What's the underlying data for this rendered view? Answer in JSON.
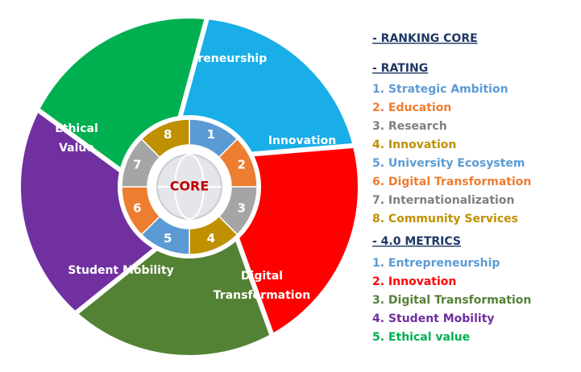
{
  "diagram": {
    "segments": [
      {
        "lines": [
          "Entrepreneurship"
        ]
      },
      {
        "lines": [
          "Innovation"
        ]
      },
      {
        "lines": [
          "Digital",
          "Transformation"
        ]
      },
      {
        "lines": [
          "Student Mobility"
        ]
      },
      {
        "lines": [
          "Ethical",
          "Value"
        ]
      }
    ],
    "core": {
      "label": "CORE",
      "numbers": [
        "1",
        "2",
        "3",
        "4",
        "5",
        "6",
        "7",
        "8"
      ]
    }
  },
  "legend": {
    "ranking_core": "- RANKING CORE",
    "rating": {
      "heading": "- RATING",
      "items": [
        "1. Strategic Ambition",
        "2. Education",
        "3. Research",
        "4. Innovation",
        "5. University Ecosystem",
        "6. Digital Transformation",
        "7. Internationalization",
        "8. Community Services"
      ]
    },
    "metrics": {
      "heading": "- 4.0 METRICS",
      "items": [
        "1. Entrepreneurship",
        "2. Innovation",
        "3. Digital Transformation",
        "4. Student Mobility",
        "5. Ethical value"
      ]
    }
  }
}
